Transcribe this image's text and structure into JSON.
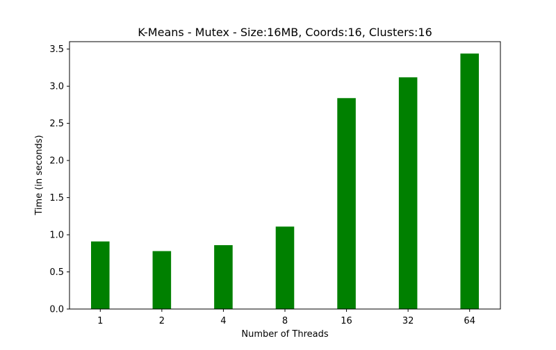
{
  "chart_data": {
    "type": "bar",
    "title": "K-Means - Mutex - Size:16MB, Coords:16, Clusters:16",
    "xlabel": "Number of Threads",
    "ylabel": "Time (in seconds)",
    "categories": [
      "1",
      "2",
      "4",
      "8",
      "16",
      "32",
      "64"
    ],
    "values": [
      0.91,
      0.78,
      0.86,
      1.11,
      2.84,
      3.12,
      3.44
    ],
    "ylim": [
      0,
      3.6
    ],
    "yticks": [
      0.0,
      0.5,
      1.0,
      1.5,
      2.0,
      2.5,
      3.0,
      3.5
    ],
    "ytick_labels": [
      "0.0",
      "0.5",
      "1.0",
      "1.5",
      "2.0",
      "2.5",
      "3.0",
      "3.5"
    ],
    "bar_color": "#008000",
    "grid": false,
    "legend": "none"
  }
}
